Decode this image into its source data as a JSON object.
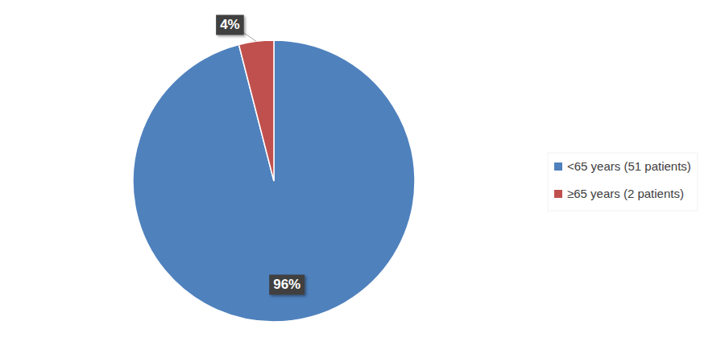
{
  "chart_data": {
    "type": "pie",
    "categories": [
      "<65 years (51 patients)",
      "≥65 years (2 patients)"
    ],
    "values": [
      96,
      4
    ],
    "value_labels": [
      "96%",
      "4%"
    ],
    "colors": [
      "#4f81bd",
      "#c0504d"
    ],
    "data_labels": true,
    "legend": "right"
  }
}
